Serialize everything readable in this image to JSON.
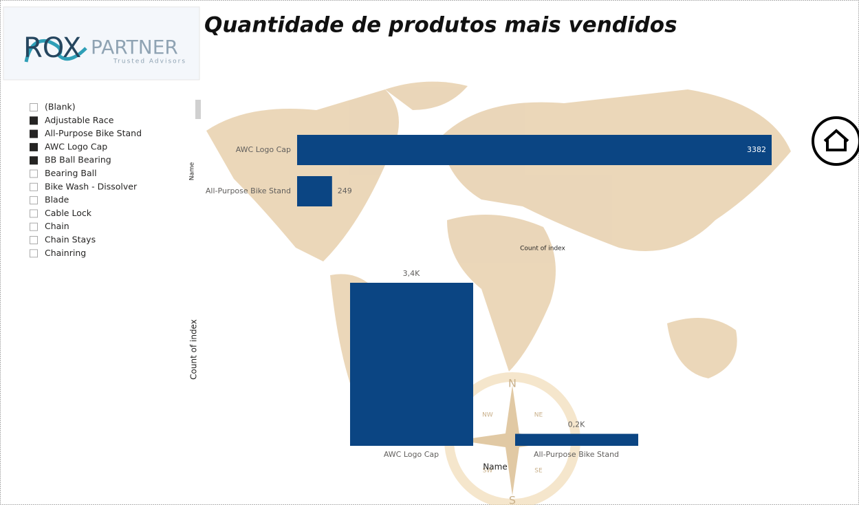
{
  "header": {
    "title": "Quantidade de produtos mais vendidos"
  },
  "logo": {
    "brand": "ROX",
    "name": "PARTNER",
    "tagline": "Trusted Advisors"
  },
  "slicer": {
    "items": [
      {
        "label": "(Blank)",
        "checked": false
      },
      {
        "label": "Adjustable Race",
        "checked": true
      },
      {
        "label": "All-Purpose Bike Stand",
        "checked": true
      },
      {
        "label": "AWC Logo Cap",
        "checked": true
      },
      {
        "label": "BB Ball Bearing",
        "checked": true
      },
      {
        "label": "Bearing Ball",
        "checked": false
      },
      {
        "label": "Bike Wash - Dissolver",
        "checked": false
      },
      {
        "label": "Blade",
        "checked": false
      },
      {
        "label": "Cable Lock",
        "checked": false
      },
      {
        "label": "Chain",
        "checked": false
      },
      {
        "label": "Chain Stays",
        "checked": false
      },
      {
        "label": "Chainring",
        "checked": false
      }
    ]
  },
  "background": {
    "compass": [
      "N",
      "NW",
      "NE",
      "SW",
      "SE",
      "S"
    ]
  },
  "chart_data": [
    {
      "type": "bar",
      "orientation": "horizontal",
      "x_label": "Count of index",
      "y_label": "Name",
      "categories": [
        "AWC Logo Cap",
        "All-Purpose Bike Stand"
      ],
      "values": [
        3382,
        249
      ],
      "color": "#0b4583",
      "xlim": [
        0,
        3382
      ]
    },
    {
      "type": "bar",
      "orientation": "vertical",
      "x_label": "Name",
      "y_label": "Count of index",
      "categories": [
        "AWC Logo Cap",
        "All-Purpose Bike Stand"
      ],
      "values": [
        3382,
        249
      ],
      "value_labels": [
        "3,4K",
        "0,2K"
      ],
      "color": "#0b4583",
      "ylim": [
        0,
        3382
      ]
    }
  ]
}
